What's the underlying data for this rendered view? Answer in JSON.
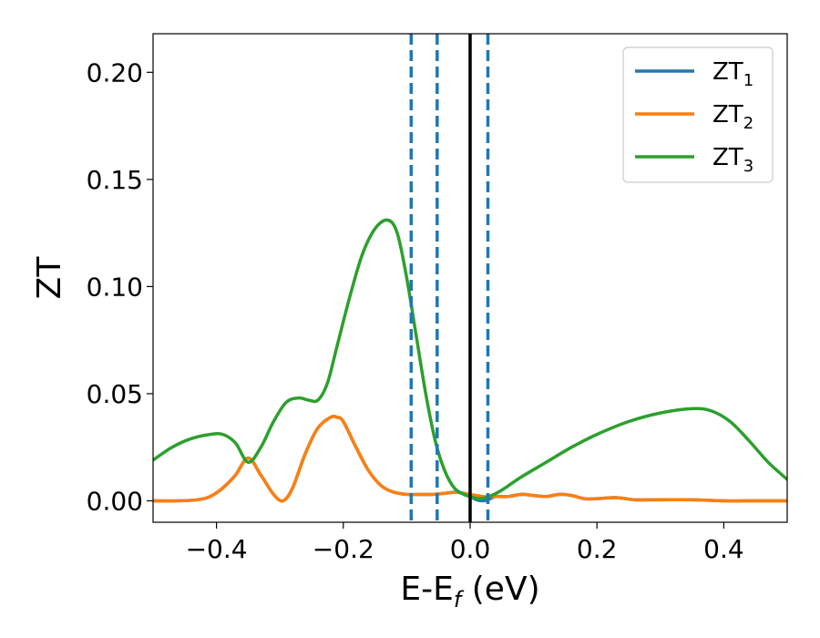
{
  "chart_data": {
    "type": "line",
    "xlabel_main": "E-E",
    "xlabel_sub": "f",
    "xlabel_unit": " (eV)",
    "ylabel": "ZT",
    "xlim": [
      -0.5,
      0.5
    ],
    "ylim": [
      -0.01,
      0.218
    ],
    "xticks": [
      -0.4,
      -0.2,
      0.0,
      0.2,
      0.4
    ],
    "xtick_labels": [
      "−0.4",
      "−0.2",
      "0.0",
      "0.2",
      "0.4"
    ],
    "yticks": [
      0.0,
      0.05,
      0.1,
      0.15,
      0.2
    ],
    "ytick_labels": [
      "0.00",
      "0.05",
      "0.10",
      "0.15",
      "0.20"
    ],
    "grid": false,
    "legend_position": "top-right",
    "vlines": [
      {
        "x": 0.0,
        "style": "solid",
        "color": "#000000"
      },
      {
        "x": -0.093,
        "style": "dashed",
        "color": "#1f77b4"
      },
      {
        "x": -0.052,
        "style": "dashed",
        "color": "#1f77b4"
      },
      {
        "x": 0.028,
        "style": "dashed",
        "color": "#1f77b4"
      }
    ],
    "series": [
      {
        "name_main": "ZT",
        "name_sub": "1",
        "color": "#1f77b4",
        "x": [
          -0.5,
          -0.46,
          -0.43,
          -0.41,
          -0.39,
          -0.37,
          -0.35,
          -0.33,
          -0.31,
          -0.295,
          -0.28,
          -0.26,
          -0.24,
          -0.22,
          -0.21,
          -0.2,
          -0.18,
          -0.16,
          -0.14,
          -0.12,
          -0.1,
          -0.08,
          -0.06,
          -0.04,
          -0.02,
          0.0,
          0.01,
          0.02,
          0.028,
          0.04,
          0.06,
          0.08,
          0.1,
          0.12,
          0.14,
          0.16,
          0.18,
          0.2,
          0.23,
          0.26,
          0.3,
          0.35,
          0.4,
          0.45,
          0.5
        ],
        "y": [
          0.0,
          0.0,
          0.0005,
          0.002,
          0.006,
          0.012,
          0.02,
          0.012,
          0.003,
          0.0,
          0.006,
          0.022,
          0.034,
          0.039,
          0.039,
          0.037,
          0.025,
          0.014,
          0.007,
          0.004,
          0.003,
          0.003,
          0.003,
          0.0035,
          0.004,
          0.002,
          0.0005,
          0.0,
          0.0005,
          0.002,
          0.002,
          0.003,
          0.0025,
          0.002,
          0.003,
          0.0025,
          0.001,
          0.001,
          0.0015,
          0.0005,
          0.0005,
          0.0005,
          0.0,
          0.0,
          0.0
        ]
      },
      {
        "name_main": "ZT",
        "name_sub": "2",
        "color": "#ff7f0e",
        "x": [
          -0.5,
          -0.46,
          -0.43,
          -0.41,
          -0.39,
          -0.37,
          -0.35,
          -0.33,
          -0.31,
          -0.295,
          -0.28,
          -0.26,
          -0.24,
          -0.22,
          -0.21,
          -0.2,
          -0.18,
          -0.16,
          -0.14,
          -0.12,
          -0.1,
          -0.08,
          -0.06,
          -0.04,
          -0.02,
          0.0,
          0.01,
          0.02,
          0.028,
          0.04,
          0.06,
          0.08,
          0.1,
          0.12,
          0.14,
          0.16,
          0.18,
          0.2,
          0.23,
          0.26,
          0.3,
          0.35,
          0.4,
          0.45,
          0.5
        ],
        "y": [
          0.0,
          0.0,
          0.0005,
          0.002,
          0.006,
          0.012,
          0.02,
          0.012,
          0.003,
          0.0,
          0.006,
          0.022,
          0.034,
          0.039,
          0.039,
          0.037,
          0.025,
          0.014,
          0.007,
          0.004,
          0.003,
          0.003,
          0.003,
          0.0035,
          0.004,
          0.003,
          0.0025,
          0.002,
          0.002,
          0.002,
          0.002,
          0.003,
          0.0025,
          0.002,
          0.003,
          0.0025,
          0.001,
          0.001,
          0.0015,
          0.0005,
          0.0005,
          0.0005,
          0.0,
          0.0,
          0.0
        ]
      },
      {
        "name_main": "ZT",
        "name_sub": "3",
        "color": "#2ca02c",
        "x": [
          -0.5,
          -0.47,
          -0.44,
          -0.41,
          -0.39,
          -0.37,
          -0.35,
          -0.33,
          -0.31,
          -0.29,
          -0.27,
          -0.255,
          -0.24,
          -0.225,
          -0.21,
          -0.19,
          -0.17,
          -0.15,
          -0.13,
          -0.115,
          -0.1,
          -0.085,
          -0.07,
          -0.055,
          -0.04,
          -0.025,
          -0.01,
          0.0,
          0.015,
          0.03,
          0.05,
          0.08,
          0.12,
          0.16,
          0.2,
          0.25,
          0.3,
          0.35,
          0.38,
          0.41,
          0.44,
          0.47,
          0.5
        ],
        "y": [
          0.019,
          0.025,
          0.029,
          0.031,
          0.031,
          0.027,
          0.018,
          0.025,
          0.037,
          0.046,
          0.048,
          0.047,
          0.047,
          0.055,
          0.072,
          0.095,
          0.115,
          0.127,
          0.131,
          0.125,
          0.104,
          0.077,
          0.05,
          0.028,
          0.014,
          0.006,
          0.003,
          0.002,
          0.001,
          0.002,
          0.005,
          0.011,
          0.018,
          0.025,
          0.031,
          0.037,
          0.041,
          0.043,
          0.042,
          0.037,
          0.028,
          0.018,
          0.01
        ]
      }
    ]
  }
}
